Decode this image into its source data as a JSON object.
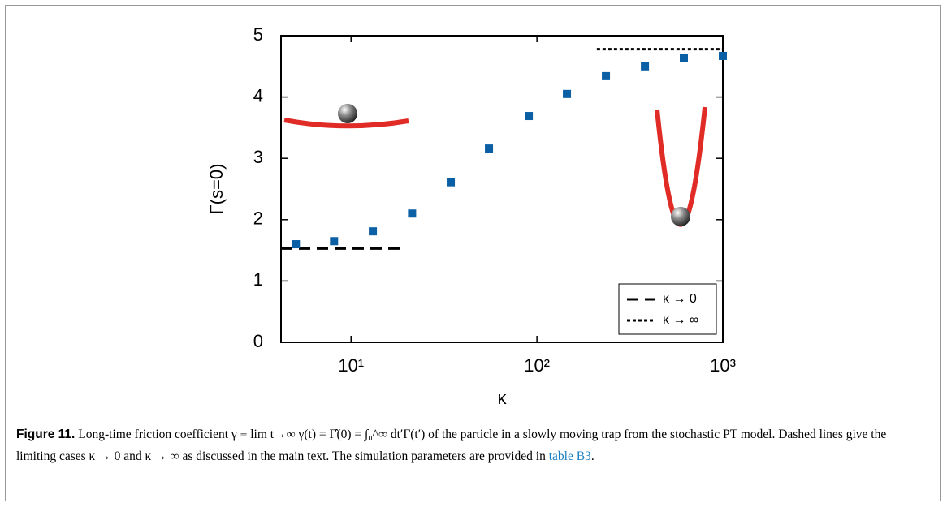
{
  "chart_data": {
    "type": "scatter",
    "xlabel": "κ",
    "ylabel": "Γ(s=0)",
    "xscale": "log",
    "xlim": [
      4.2,
      1000
    ],
    "ylim": [
      0,
      5
    ],
    "xticks": [
      {
        "value": 10,
        "label": "10¹"
      },
      {
        "value": 100,
        "label": "10²"
      },
      {
        "value": 1000,
        "label": "10³"
      }
    ],
    "yticks": [
      0,
      1,
      2,
      3,
      4,
      5
    ],
    "series": [
      {
        "name": "Γ(s=0)",
        "color": "#0b5fa5",
        "x": [
          5.05,
          8.1,
          13.1,
          21.3,
          34.4,
          55.2,
          90.4,
          145,
          235,
          381,
          617,
          1000
        ],
        "values": [
          1.6,
          1.65,
          1.81,
          2.1,
          2.61,
          3.16,
          3.69,
          4.05,
          4.34,
          4.5,
          4.63,
          4.67
        ]
      }
    ],
    "lines": [
      {
        "name": "κ → 0",
        "style": "dashed",
        "y": 1.53,
        "x": [
          4.2,
          18.8
        ]
      },
      {
        "name": "κ → ∞",
        "style": "dotted",
        "y": 4.78,
        "x": [
          210,
          1000
        ]
      }
    ],
    "legend": "lower right"
  },
  "caption": {
    "label": "Figure 11.",
    "text": " Long-time friction coefficient γ ≡ lim t→∞ γ(t) = Γ̂(0) = ∫₀^∞ dt′Γ(t′) of the particle in a slowly moving trap from the stochastic PT model. Dashed lines give the limiting cases κ → 0 and κ → ∞ as discussed in the main text. The simulation parameters are provided in ",
    "link": "table B3",
    "end": "."
  }
}
